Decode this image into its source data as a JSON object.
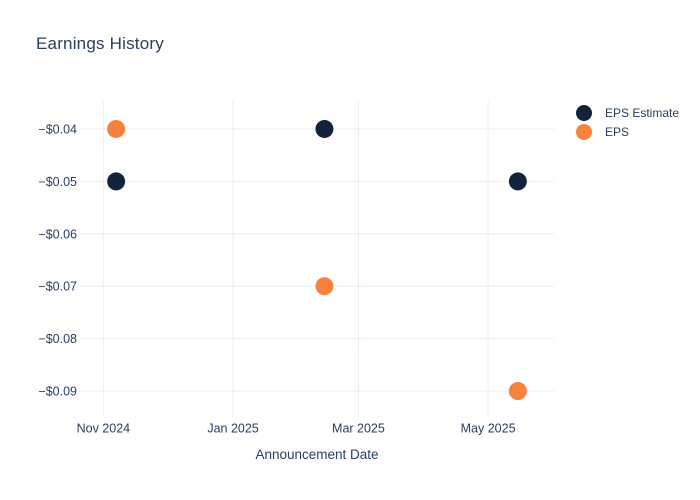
{
  "page": {
    "background_color": "#ffffff"
  },
  "chart_data": {
    "type": "scatter",
    "title": "Earnings History",
    "xlabel": "Announcement Date",
    "ylabel": "",
    "grid": true,
    "legend_position": "right",
    "xlim": [
      "2024-10-21",
      "2025-06-01"
    ],
    "ylim": [
      -0.09496,
      -0.03466
    ],
    "x_ticks": [
      {
        "label": "Nov 2024",
        "date": "2024-11-01"
      },
      {
        "label": "Jan 2025",
        "date": "2025-01-01"
      },
      {
        "label": "Mar 2025",
        "date": "2025-03-01"
      },
      {
        "label": "May 2025",
        "date": "2025-05-01"
      }
    ],
    "y_ticks": [
      {
        "label": "−$0.04",
        "value": -0.04
      },
      {
        "label": "−$0.05",
        "value": -0.05
      },
      {
        "label": "−$0.06",
        "value": -0.06
      },
      {
        "label": "−$0.07",
        "value": -0.07
      },
      {
        "label": "−$0.08",
        "value": -0.08
      },
      {
        "label": "−$0.09",
        "value": -0.09
      }
    ],
    "series": [
      {
        "name": "EPS Estimate",
        "color": "#14233c",
        "points": [
          {
            "date": "2024-11-07",
            "value": -0.05,
            "label": "−$0.05"
          },
          {
            "date": "2025-02-13",
            "value": -0.04,
            "label": "−$0.04"
          },
          {
            "date": "2025-05-15",
            "value": -0.05,
            "label": "−$0.05"
          }
        ]
      },
      {
        "name": "EPS",
        "color": "#f6823d",
        "points": [
          {
            "date": "2024-11-07",
            "value": -0.04,
            "label": "−$0.04"
          },
          {
            "date": "2025-02-13",
            "value": -0.07,
            "label": "−$0.07"
          },
          {
            "date": "2025-05-15",
            "value": -0.09,
            "label": "−$0.09"
          }
        ]
      }
    ],
    "marker_radius": 9,
    "colors": {
      "title_text": "#2a3f5f",
      "tick_text": "#2a3f5f",
      "gridline": "#e9eef6"
    }
  }
}
